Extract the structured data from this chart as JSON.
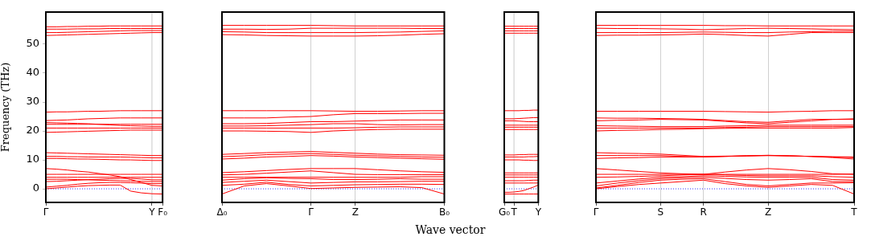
{
  "chart_data": [
    {
      "type": "line",
      "ylabel": "Frequency (THz)",
      "ylim": [
        -4.7,
        61.1
      ],
      "yticks": [
        0,
        10,
        20,
        30,
        40,
        50
      ],
      "categories": [
        "Γ",
        null,
        null,
        null,
        null,
        null,
        null,
        null,
        null,
        null,
        "Y",
        "F₀"
      ],
      "marker": "none",
      "tick_labels": "xy",
      "ref_lines": [
        {
          "axis": "y",
          "value": 0,
          "color": "#0000ff",
          "line_style": "dotted"
        },
        {
          "axis": "x",
          "value": "Y",
          "color": "#bbbbbb",
          "line_style": "solid"
        }
      ],
      "series": [
        {
          "color": "#ff0000",
          "values": [
            0,
            0.3,
            0.6,
            0.9,
            1.1,
            1.2,
            1.3,
            1.3,
            -0.8,
            -1.4,
            -1.7,
            -1.8
          ]
        },
        {
          "color": "#ff0000",
          "values": [
            0.6,
            0.9,
            1.2,
            1.6,
            1.9,
            2.1,
            2.2,
            2.2,
            2.1,
            2,
            1.8,
            1.8
          ]
        },
        {
          "color": "#ff0000",
          "values": [
            2.5,
            2.6,
            2.8,
            3,
            3.2,
            3.3,
            3.5,
            3.6,
            3.6,
            3.4,
            3.1,
            3.1
          ]
        },
        {
          "color": "#ff0000",
          "values": [
            3.3,
            3.3,
            3.3,
            3.2,
            3.1,
            3,
            2.9,
            2.8,
            2.7,
            2.6,
            2.5,
            2.5
          ]
        },
        {
          "color": "#ff0000",
          "values": [
            4,
            4,
            4,
            4,
            4,
            4,
            4,
            4,
            4,
            4,
            4,
            4
          ]
        },
        {
          "color": "#ff0000",
          "values": [
            5,
            5,
            5,
            5,
            5,
            5,
            5,
            5,
            5,
            5,
            5,
            5
          ]
        },
        {
          "color": "#ff0000",
          "values": [
            7,
            6.8,
            6.5,
            6.1,
            5.8,
            5.3,
            4.8,
            4.2,
            3.2,
            2.2,
            1.2,
            1
          ]
        },
        {
          "color": "#ff0000",
          "values": [
            10.5,
            10.5,
            10.4,
            10.3,
            10.3,
            10.2,
            10.1,
            10,
            10,
            9.9,
            9.8,
            9.8
          ]
        },
        {
          "color": "#ff0000",
          "values": [
            11.2,
            11.2,
            11.1,
            11.1,
            11,
            11,
            11,
            11,
            10.9,
            10.8,
            10.7,
            10.7
          ]
        },
        {
          "color": "#ff0000",
          "values": [
            12.5,
            12.4,
            12.3,
            12.2,
            12.1,
            12,
            11.9,
            11.8,
            11.7,
            11.6,
            11.5,
            11.5
          ]
        },
        {
          "color": "#ff0000",
          "values": [
            19.5,
            19.6,
            19.7,
            19.8,
            19.9,
            20,
            20.1,
            20.2,
            20.3,
            20.3,
            20.3,
            20.3
          ]
        },
        {
          "color": "#ff0000",
          "values": [
            21,
            21,
            21,
            21,
            21,
            21,
            21,
            21,
            21,
            21,
            21,
            21
          ]
        },
        {
          "color": "#ff0000",
          "values": [
            22.3,
            22.3,
            22.3,
            22.3,
            22.3,
            22.3,
            22.3,
            22.3,
            22.3,
            22.3,
            22.3,
            22.3
          ]
        },
        {
          "color": "#ff0000",
          "values": [
            22.9,
            22.8,
            22.7,
            22.6,
            22.5,
            22.3,
            22.1,
            21.9,
            21.8,
            21.7,
            21.6,
            21.6
          ]
        },
        {
          "color": "#ff0000",
          "values": [
            23.6,
            23.7,
            23.8,
            24,
            24.2,
            24.3,
            24.4,
            24.5,
            24.5,
            24.5,
            24.5,
            24.5
          ]
        },
        {
          "color": "#ff0000",
          "values": [
            26.5,
            26.6,
            26.6,
            26.7,
            26.8,
            26.8,
            26.9,
            27,
            27,
            27,
            27,
            27
          ]
        },
        {
          "color": "#ff0000",
          "values": [
            53,
            53.1,
            53.2,
            53.3,
            53.4,
            53.5,
            53.6,
            53.7,
            53.8,
            53.9,
            54,
            54
          ]
        },
        {
          "color": "#ff0000",
          "values": [
            54,
            54,
            54.1,
            54.2,
            54.3,
            54.4,
            54.5,
            54.6,
            54.7,
            54.7,
            54.7,
            54.7
          ]
        },
        {
          "color": "#ff0000",
          "values": [
            55.2,
            55.2,
            55.2,
            55.3,
            55.3,
            55.3,
            55.4,
            55.4,
            55.4,
            55.4,
            55.4,
            55.4
          ]
        },
        {
          "color": "#ff0000",
          "values": [
            56,
            56,
            56.1,
            56.1,
            56.2,
            56.2,
            56.3,
            56.3,
            56.3,
            56.3,
            56.3,
            56.3
          ]
        }
      ]
    },
    {
      "type": "line",
      "ylim": [
        -4.7,
        61.1
      ],
      "yticks": [
        0,
        10,
        20,
        30,
        40,
        50
      ],
      "categories": [
        "Δ₀",
        null,
        null,
        null,
        "Γ",
        null,
        "Z",
        null,
        null,
        null,
        "B₀"
      ],
      "grid": "x",
      "marker": "none",
      "tick_labels": "x",
      "ref_lines": [
        {
          "axis": "y",
          "value": 0,
          "color": "#0000ff",
          "line_style": "dotted"
        }
      ],
      "series": [
        {
          "color": "#ff0000",
          "values": [
            -1.8,
            1,
            1.8,
            1,
            0.1,
            0.3,
            0.5,
            0.6,
            0.7,
            0.4,
            -1.8
          ]
        },
        {
          "color": "#ff0000",
          "values": [
            1.2,
            1.6,
            2.3,
            1.5,
            1,
            1.2,
            1.4,
            1.5,
            1.6,
            1.6,
            1.5
          ]
        },
        {
          "color": "#ff0000",
          "values": [
            2.2,
            2.6,
            3,
            2.5,
            2,
            2.2,
            2.4,
            2.4,
            2.5,
            2.6,
            2.6
          ]
        },
        {
          "color": "#ff0000",
          "values": [
            3,
            3.5,
            3.8,
            3.6,
            3.5,
            3.2,
            3.2,
            3.3,
            3.5,
            3.3,
            3.3
          ]
        },
        {
          "color": "#ff0000",
          "values": [
            4,
            4,
            4,
            4,
            4,
            4,
            4,
            4,
            4,
            4.2,
            4.2
          ]
        },
        {
          "color": "#ff0000",
          "values": [
            4.8,
            5,
            5.4,
            5.8,
            6.2,
            5.6,
            5,
            4.9,
            4.9,
            4.9,
            4.9
          ]
        },
        {
          "color": "#ff0000",
          "values": [
            5.6,
            5.9,
            6.3,
            6.7,
            7,
            7,
            7,
            6.6,
            6.2,
            5.9,
            5.7
          ]
        },
        {
          "color": "#ff0000",
          "values": [
            10.3,
            10.6,
            11,
            11.2,
            11.5,
            11.3,
            11,
            10.8,
            10.6,
            10.4,
            10.2
          ]
        },
        {
          "color": "#ff0000",
          "values": [
            11.1,
            11.4,
            11.8,
            12,
            12.2,
            11.9,
            11.6,
            11.4,
            11.2,
            11,
            10.9
          ]
        },
        {
          "color": "#ff0000",
          "values": [
            11.9,
            12.2,
            12.5,
            12.7,
            12.9,
            12.6,
            12.3,
            12,
            11.8,
            11.7,
            11.6
          ]
        },
        {
          "color": "#ff0000",
          "values": [
            20,
            20,
            19.9,
            19.8,
            19.5,
            20,
            20.3,
            20.5,
            20.6,
            20.6,
            20.6
          ]
        },
        {
          "color": "#ff0000",
          "values": [
            21,
            21,
            21,
            21,
            21,
            21,
            21.1,
            21.3,
            21.4,
            21.4,
            21.4
          ]
        },
        {
          "color": "#ff0000",
          "values": [
            21.7,
            21.7,
            21.8,
            22,
            22.2,
            22.5,
            22.5,
            22.2,
            22.1,
            22.2,
            22.2
          ]
        },
        {
          "color": "#ff0000",
          "values": [
            22.5,
            22.5,
            22.6,
            22.9,
            23.2,
            23.2,
            23.4,
            23.6,
            23.8,
            23.8,
            23.8
          ]
        },
        {
          "color": "#ff0000",
          "values": [
            24.5,
            24.5,
            24.5,
            24.8,
            25,
            25.6,
            26,
            26,
            26,
            26.1,
            26.1
          ]
        },
        {
          "color": "#ff0000",
          "values": [
            27,
            27,
            27,
            27,
            27,
            26.9,
            26.8,
            26.8,
            26.9,
            27,
            27
          ]
        },
        {
          "color": "#ff0000",
          "values": [
            53.3,
            53.2,
            53,
            52.9,
            52.8,
            52.8,
            52.8,
            52.9,
            53.1,
            53.4,
            53.6
          ]
        },
        {
          "color": "#ff0000",
          "values": [
            54.3,
            54.2,
            54,
            54,
            54,
            54,
            54,
            54.1,
            54.2,
            54.4,
            54.6
          ]
        },
        {
          "color": "#ff0000",
          "values": [
            55.2,
            55.2,
            55.1,
            55.2,
            55.5,
            55.5,
            55.5,
            55.5,
            55.5,
            55.4,
            55.4
          ]
        },
        {
          "color": "#ff0000",
          "values": [
            56.5,
            56.5,
            56.5,
            56.5,
            56.5,
            56.4,
            56.3,
            56.3,
            56.3,
            56.3,
            56.3
          ]
        }
      ]
    },
    {
      "type": "line",
      "ylim": [
        -4.7,
        61.1
      ],
      "yticks": [
        0,
        10,
        20,
        30,
        40,
        50
      ],
      "categories": [
        "G₀",
        null,
        "T",
        null,
        null,
        null,
        null,
        "Y"
      ],
      "marker": "none",
      "tick_labels": "x",
      "xlabel": "Wave vector",
      "ref_lines": [
        {
          "axis": "y",
          "value": 0,
          "color": "#0000ff",
          "line_style": "dotted"
        },
        {
          "axis": "x",
          "value": "T",
          "color": "#bbbbbb",
          "line_style": "solid"
        }
      ],
      "series": [
        {
          "color": "#ff0000",
          "values": [
            -1.8,
            -1.8,
            -1.8,
            -1.8,
            -1.8,
            -1.8,
            -1.8,
            -1.8
          ]
        },
        {
          "color": "#ff0000",
          "values": [
            -1.2,
            -1.2,
            -1.1,
            -0.9,
            -0.6,
            0,
            0.6,
            1.3
          ]
        },
        {
          "color": "#ff0000",
          "values": [
            2,
            2,
            2,
            2,
            2,
            2,
            2,
            2
          ]
        },
        {
          "color": "#ff0000",
          "values": [
            2.8,
            2.8,
            2.8,
            2.8,
            2.8,
            2.9,
            3,
            3
          ]
        },
        {
          "color": "#ff0000",
          "values": [
            4,
            4,
            4,
            4,
            4,
            4,
            4,
            4
          ]
        },
        {
          "color": "#ff0000",
          "values": [
            4.8,
            4.8,
            4.8,
            4.8,
            4.8,
            4.8,
            4.8,
            4.8
          ]
        },
        {
          "color": "#ff0000",
          "values": [
            5.5,
            5.5,
            5.5,
            5.5,
            5.5,
            5.5,
            5.5,
            5.5
          ]
        },
        {
          "color": "#ff0000",
          "values": [
            10,
            10,
            10,
            10,
            9.9,
            9.9,
            9.8,
            9.8
          ]
        },
        {
          "color": "#ff0000",
          "values": [
            11,
            11,
            11,
            11,
            11,
            11.1,
            11.1,
            11.2
          ]
        },
        {
          "color": "#ff0000",
          "values": [
            11.7,
            11.7,
            11.7,
            11.8,
            11.8,
            11.9,
            11.9,
            11.9
          ]
        },
        {
          "color": "#ff0000",
          "values": [
            20.5,
            20.5,
            20.5,
            20.5,
            20.5,
            20.5,
            20.5,
            20.5
          ]
        },
        {
          "color": "#ff0000",
          "values": [
            21.3,
            21.3,
            21.3,
            21.3,
            21.3,
            21.3,
            21.3,
            21.3
          ]
        },
        {
          "color": "#ff0000",
          "values": [
            22,
            22,
            22,
            22,
            22,
            22,
            22,
            22
          ]
        },
        {
          "color": "#ff0000",
          "values": [
            23.5,
            23.5,
            23.5,
            23.4,
            23.3,
            23.2,
            23.2,
            23.2
          ]
        },
        {
          "color": "#ff0000",
          "values": [
            24.2,
            24.2,
            24.2,
            24.3,
            24.4,
            24.5,
            24.6,
            24.6
          ]
        },
        {
          "color": "#ff0000",
          "values": [
            27,
            27,
            27,
            27,
            27.1,
            27.1,
            27.2,
            27.2
          ]
        },
        {
          "color": "#ff0000",
          "values": [
            53.8,
            53.8,
            53.8,
            53.8,
            53.8,
            53.8,
            53.8,
            53.8
          ]
        },
        {
          "color": "#ff0000",
          "values": [
            54.6,
            54.6,
            54.6,
            54.6,
            54.6,
            54.6,
            54.6,
            54.6
          ]
        },
        {
          "color": "#ff0000",
          "values": [
            55.4,
            55.4,
            55.4,
            55.4,
            55.4,
            55.4,
            55.4,
            55.4
          ]
        },
        {
          "color": "#ff0000",
          "values": [
            56.2,
            56.2,
            56.2,
            56.2,
            56.2,
            56.2,
            56.2,
            56.2
          ]
        }
      ]
    },
    {
      "type": "line",
      "ylim": [
        -4.7,
        61.1
      ],
      "yticks": [
        0,
        10,
        20,
        30,
        40,
        50
      ],
      "categories": [
        "Γ",
        null,
        null,
        "S",
        null,
        "R",
        null,
        null,
        "Z",
        null,
        null,
        null,
        "T"
      ],
      "grid": "x",
      "marker": "none",
      "tick_labels": "x",
      "ref_lines": [
        {
          "axis": "y",
          "value": 0,
          "color": "#0000ff",
          "line_style": "dotted"
        }
      ],
      "series": [
        {
          "color": "#ff0000",
          "values": [
            0,
            0.8,
            1.5,
            2,
            2.5,
            3,
            1.8,
            1,
            0.5,
            1,
            1.5,
            1.2,
            -1.8
          ]
        },
        {
          "color": "#ff0000",
          "values": [
            0.3,
            1.2,
            2.2,
            3,
            3.3,
            3.5,
            2.5,
            1.5,
            1,
            1.5,
            2,
            2,
            2.1
          ]
        },
        {
          "color": "#ff0000",
          "values": [
            1,
            2,
            2.8,
            3.5,
            3.8,
            4,
            3.6,
            3.2,
            3,
            3.2,
            3.5,
            2.5,
            2.5
          ]
        },
        {
          "color": "#ff0000",
          "values": [
            2,
            2.7,
            3.4,
            4,
            4.2,
            4.5,
            4.3,
            4.1,
            4,
            4,
            4,
            3.2,
            3
          ]
        },
        {
          "color": "#ff0000",
          "values": [
            4,
            4.1,
            4.3,
            4.5,
            4.8,
            5,
            4.8,
            4.6,
            4.5,
            4.5,
            4.5,
            4.2,
            4
          ]
        },
        {
          "color": "#ff0000",
          "values": [
            5,
            5,
            5,
            5,
            5,
            5,
            5,
            5,
            5,
            5,
            5,
            5,
            5.1
          ]
        },
        {
          "color": "#ff0000",
          "values": [
            7,
            6.5,
            6,
            5.5,
            5.2,
            5,
            5.8,
            6.5,
            7,
            6.6,
            6,
            5.2,
            5
          ]
        },
        {
          "color": "#ff0000",
          "values": [
            10.5,
            10.7,
            10.8,
            11,
            11,
            11,
            11.2,
            11.4,
            11.5,
            11.4,
            11.2,
            10.8,
            10.3
          ]
        },
        {
          "color": "#ff0000",
          "values": [
            11.5,
            11.5,
            11.5,
            11.5,
            11.2,
            11,
            11.2,
            11.4,
            11.5,
            11.4,
            11.2,
            11,
            10.8
          ]
        },
        {
          "color": "#ff0000",
          "values": [
            12.5,
            12.3,
            12.2,
            12,
            11.6,
            11.2,
            11.3,
            11.4,
            11.6,
            11.4,
            11.2,
            11.1,
            11
          ]
        },
        {
          "color": "#ff0000",
          "values": [
            20,
            20.2,
            20.3,
            20.5,
            20.6,
            20.8,
            20.9,
            21,
            21,
            21,
            21,
            21,
            21.2
          ]
        },
        {
          "color": "#ff0000",
          "values": [
            21,
            21,
            21,
            21,
            21,
            21,
            21.2,
            21.3,
            21.5,
            21.5,
            21.5,
            21.5,
            21.5
          ]
        },
        {
          "color": "#ff0000",
          "values": [
            21.8,
            21.7,
            21.6,
            21.5,
            21.5,
            21.5,
            21.7,
            21.8,
            22,
            22,
            22,
            22,
            22
          ]
        },
        {
          "color": "#ff0000",
          "values": [
            23.5,
            23.7,
            23.8,
            24,
            23.9,
            23.8,
            23.3,
            22.8,
            22.5,
            23,
            23.5,
            24,
            24
          ]
        },
        {
          "color": "#ff0000",
          "values": [
            24.5,
            24.4,
            24.4,
            24.3,
            24.2,
            24,
            23.6,
            23.2,
            23,
            23.5,
            24,
            24,
            24.2
          ]
        },
        {
          "color": "#ff0000",
          "values": [
            26.8,
            26.8,
            26.8,
            26.8,
            26.8,
            26.8,
            26.7,
            26.6,
            26.5,
            26.7,
            26.8,
            27,
            27
          ]
        },
        {
          "color": "#ff0000",
          "values": [
            53,
            53.1,
            53.1,
            53.2,
            53.3,
            53.5,
            53.3,
            53,
            52.8,
            53.4,
            54,
            54,
            54
          ]
        },
        {
          "color": "#ff0000",
          "values": [
            54,
            54,
            54,
            54,
            54.1,
            54.2,
            54.1,
            54,
            54,
            54.2,
            54.3,
            54.5,
            54.5
          ]
        },
        {
          "color": "#ff0000",
          "values": [
            55.5,
            55.4,
            55.4,
            55.3,
            55.2,
            55,
            55.2,
            55.4,
            55.5,
            55.4,
            55.3,
            55.1,
            55
          ]
        },
        {
          "color": "#ff0000",
          "values": [
            56.5,
            56.5,
            56.5,
            56.5,
            56.5,
            56.5,
            56.4,
            56.4,
            56.3,
            56.3,
            56.3,
            56.3,
            56.3
          ]
        }
      ]
    }
  ]
}
